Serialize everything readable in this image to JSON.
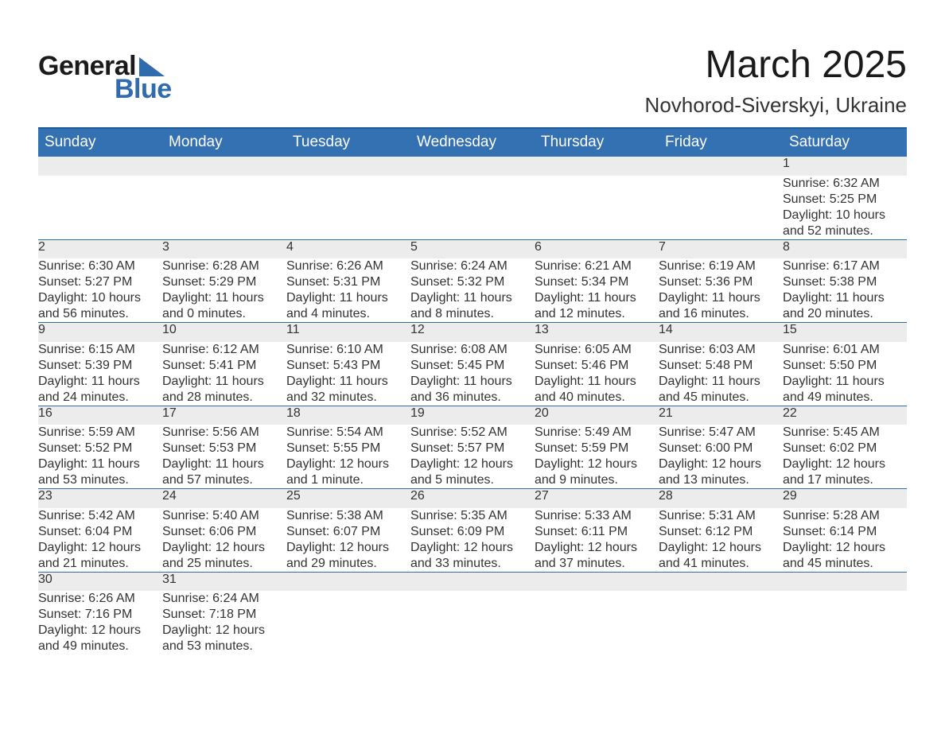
{
  "brand": {
    "part1": "General",
    "part2": "Blue"
  },
  "header": {
    "month_title": "March 2025",
    "location": "Novhorod-Siverskyi, Ukraine"
  },
  "accent_color": "#3371b3",
  "row_border_color": "#2f6bad",
  "daynum_bg": "#ececec",
  "text_color": "#333333",
  "weekdays": [
    "Sunday",
    "Monday",
    "Tuesday",
    "Wednesday",
    "Thursday",
    "Friday",
    "Saturday"
  ],
  "weeks": [
    [
      null,
      null,
      null,
      null,
      null,
      null,
      {
        "n": "1",
        "sunrise": "Sunrise: 6:32 AM",
        "sunset": "Sunset: 5:25 PM",
        "daylight": "Daylight: 10 hours and 52 minutes."
      }
    ],
    [
      {
        "n": "2",
        "sunrise": "Sunrise: 6:30 AM",
        "sunset": "Sunset: 5:27 PM",
        "daylight": "Daylight: 10 hours and 56 minutes."
      },
      {
        "n": "3",
        "sunrise": "Sunrise: 6:28 AM",
        "sunset": "Sunset: 5:29 PM",
        "daylight": "Daylight: 11 hours and 0 minutes."
      },
      {
        "n": "4",
        "sunrise": "Sunrise: 6:26 AM",
        "sunset": "Sunset: 5:31 PM",
        "daylight": "Daylight: 11 hours and 4 minutes."
      },
      {
        "n": "5",
        "sunrise": "Sunrise: 6:24 AM",
        "sunset": "Sunset: 5:32 PM",
        "daylight": "Daylight: 11 hours and 8 minutes."
      },
      {
        "n": "6",
        "sunrise": "Sunrise: 6:21 AM",
        "sunset": "Sunset: 5:34 PM",
        "daylight": "Daylight: 11 hours and 12 minutes."
      },
      {
        "n": "7",
        "sunrise": "Sunrise: 6:19 AM",
        "sunset": "Sunset: 5:36 PM",
        "daylight": "Daylight: 11 hours and 16 minutes."
      },
      {
        "n": "8",
        "sunrise": "Sunrise: 6:17 AM",
        "sunset": "Sunset: 5:38 PM",
        "daylight": "Daylight: 11 hours and 20 minutes."
      }
    ],
    [
      {
        "n": "9",
        "sunrise": "Sunrise: 6:15 AM",
        "sunset": "Sunset: 5:39 PM",
        "daylight": "Daylight: 11 hours and 24 minutes."
      },
      {
        "n": "10",
        "sunrise": "Sunrise: 6:12 AM",
        "sunset": "Sunset: 5:41 PM",
        "daylight": "Daylight: 11 hours and 28 minutes."
      },
      {
        "n": "11",
        "sunrise": "Sunrise: 6:10 AM",
        "sunset": "Sunset: 5:43 PM",
        "daylight": "Daylight: 11 hours and 32 minutes."
      },
      {
        "n": "12",
        "sunrise": "Sunrise: 6:08 AM",
        "sunset": "Sunset: 5:45 PM",
        "daylight": "Daylight: 11 hours and 36 minutes."
      },
      {
        "n": "13",
        "sunrise": "Sunrise: 6:05 AM",
        "sunset": "Sunset: 5:46 PM",
        "daylight": "Daylight: 11 hours and 40 minutes."
      },
      {
        "n": "14",
        "sunrise": "Sunrise: 6:03 AM",
        "sunset": "Sunset: 5:48 PM",
        "daylight": "Daylight: 11 hours and 45 minutes."
      },
      {
        "n": "15",
        "sunrise": "Sunrise: 6:01 AM",
        "sunset": "Sunset: 5:50 PM",
        "daylight": "Daylight: 11 hours and 49 minutes."
      }
    ],
    [
      {
        "n": "16",
        "sunrise": "Sunrise: 5:59 AM",
        "sunset": "Sunset: 5:52 PM",
        "daylight": "Daylight: 11 hours and 53 minutes."
      },
      {
        "n": "17",
        "sunrise": "Sunrise: 5:56 AM",
        "sunset": "Sunset: 5:53 PM",
        "daylight": "Daylight: 11 hours and 57 minutes."
      },
      {
        "n": "18",
        "sunrise": "Sunrise: 5:54 AM",
        "sunset": "Sunset: 5:55 PM",
        "daylight": "Daylight: 12 hours and 1 minute."
      },
      {
        "n": "19",
        "sunrise": "Sunrise: 5:52 AM",
        "sunset": "Sunset: 5:57 PM",
        "daylight": "Daylight: 12 hours and 5 minutes."
      },
      {
        "n": "20",
        "sunrise": "Sunrise: 5:49 AM",
        "sunset": "Sunset: 5:59 PM",
        "daylight": "Daylight: 12 hours and 9 minutes."
      },
      {
        "n": "21",
        "sunrise": "Sunrise: 5:47 AM",
        "sunset": "Sunset: 6:00 PM",
        "daylight": "Daylight: 12 hours and 13 minutes."
      },
      {
        "n": "22",
        "sunrise": "Sunrise: 5:45 AM",
        "sunset": "Sunset: 6:02 PM",
        "daylight": "Daylight: 12 hours and 17 minutes."
      }
    ],
    [
      {
        "n": "23",
        "sunrise": "Sunrise: 5:42 AM",
        "sunset": "Sunset: 6:04 PM",
        "daylight": "Daylight: 12 hours and 21 minutes."
      },
      {
        "n": "24",
        "sunrise": "Sunrise: 5:40 AM",
        "sunset": "Sunset: 6:06 PM",
        "daylight": "Daylight: 12 hours and 25 minutes."
      },
      {
        "n": "25",
        "sunrise": "Sunrise: 5:38 AM",
        "sunset": "Sunset: 6:07 PM",
        "daylight": "Daylight: 12 hours and 29 minutes."
      },
      {
        "n": "26",
        "sunrise": "Sunrise: 5:35 AM",
        "sunset": "Sunset: 6:09 PM",
        "daylight": "Daylight: 12 hours and 33 minutes."
      },
      {
        "n": "27",
        "sunrise": "Sunrise: 5:33 AM",
        "sunset": "Sunset: 6:11 PM",
        "daylight": "Daylight: 12 hours and 37 minutes."
      },
      {
        "n": "28",
        "sunrise": "Sunrise: 5:31 AM",
        "sunset": "Sunset: 6:12 PM",
        "daylight": "Daylight: 12 hours and 41 minutes."
      },
      {
        "n": "29",
        "sunrise": "Sunrise: 5:28 AM",
        "sunset": "Sunset: 6:14 PM",
        "daylight": "Daylight: 12 hours and 45 minutes."
      }
    ],
    [
      {
        "n": "30",
        "sunrise": "Sunrise: 6:26 AM",
        "sunset": "Sunset: 7:16 PM",
        "daylight": "Daylight: 12 hours and 49 minutes."
      },
      {
        "n": "31",
        "sunrise": "Sunrise: 6:24 AM",
        "sunset": "Sunset: 7:18 PM",
        "daylight": "Daylight: 12 hours and 53 minutes."
      },
      null,
      null,
      null,
      null,
      null
    ]
  ]
}
